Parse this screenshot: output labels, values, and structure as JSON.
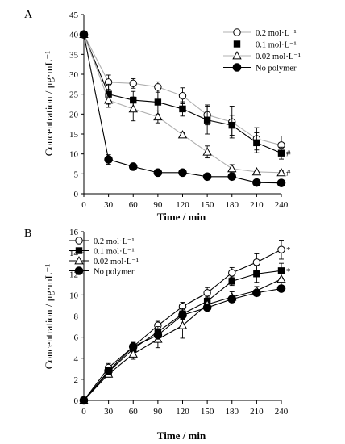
{
  "chart_data": [
    {
      "panel": "A",
      "type": "line",
      "xlabel": "Time / min",
      "ylabel": "Concentration / μg·mL⁻¹",
      "x": [
        0,
        30,
        60,
        90,
        120,
        150,
        180,
        210,
        240
      ],
      "xlim": [
        0,
        240
      ],
      "ylim": [
        0,
        45
      ],
      "yticks": [
        0,
        5,
        10,
        15,
        20,
        25,
        30,
        35,
        40,
        45
      ],
      "legend_position": "top-right",
      "series": [
        {
          "name": "0.2 mol·L⁻¹",
          "marker": "open-circle",
          "line_color": "#b0b0b0",
          "values": [
            40,
            28,
            27.7,
            26.8,
            24.6,
            19.8,
            18,
            13.8,
            12.2
          ],
          "errors": [
            0,
            1.8,
            1.2,
            1.3,
            2,
            2.5,
            4,
            2.8,
            2.3
          ],
          "end_mark": ""
        },
        {
          "name": "0.1 mol·L⁻¹",
          "marker": "filled-square",
          "line_color": "#000000",
          "values": [
            40,
            25,
            23.5,
            23,
            21.3,
            18.5,
            17.2,
            12.8,
            10.2
          ],
          "errors": [
            0,
            2.5,
            2.2,
            3,
            1.8,
            3.5,
            2.5,
            2.5,
            1.5
          ],
          "end_mark": "#"
        },
        {
          "name": "0.02 mol·L⁻¹",
          "marker": "open-triangle",
          "line_color": "#b0b0b0",
          "values": [
            40,
            23.5,
            21.3,
            19.3,
            14.8,
            10.5,
            6.3,
            5.5,
            5.3
          ],
          "errors": [
            0,
            1.8,
            3,
            1.5,
            0.5,
            1.5,
            1,
            0.5,
            0.4
          ],
          "end_mark": "#"
        },
        {
          "name": "No polymer",
          "marker": "filled-circle",
          "line_color": "#000000",
          "values": [
            40,
            8.6,
            6.8,
            5.3,
            5.3,
            4.3,
            4.3,
            2.8,
            2.7
          ],
          "errors": [
            0,
            1.2,
            0.8,
            0.6,
            0.5,
            0.4,
            0.4,
            0.3,
            0.3
          ],
          "end_mark": ""
        }
      ]
    },
    {
      "panel": "B",
      "type": "line",
      "xlabel": "Time / min",
      "ylabel": "Concentration / μg·mL⁻¹",
      "x": [
        0,
        30,
        60,
        90,
        120,
        150,
        180,
        210,
        240
      ],
      "xlim": [
        0,
        240
      ],
      "ylim": [
        0,
        16
      ],
      "yticks": [
        0,
        2,
        4,
        6,
        8,
        10,
        12,
        14,
        16
      ],
      "legend_position": "top-left",
      "series": [
        {
          "name": "0.2 mol·L⁻¹",
          "marker": "open-circle",
          "line_color": "#000000",
          "values": [
            0,
            3.1,
            5.1,
            7.1,
            8.9,
            10.2,
            12.1,
            13.1,
            14.3
          ],
          "errors": [
            0,
            0.4,
            0.4,
            0.4,
            0.4,
            0.5,
            0.5,
            0.8,
            0.9
          ],
          "end_mark": "*"
        },
        {
          "name": "0.1 mol·L⁻¹",
          "marker": "filled-square",
          "line_color": "#000000",
          "values": [
            0,
            2.7,
            4.9,
            6.5,
            8.2,
            9.4,
            11.3,
            12,
            12.3
          ],
          "errors": [
            0,
            0.3,
            0.4,
            0.5,
            0.5,
            0.4,
            0.4,
            0.8,
            0.7
          ],
          "end_mark": "*"
        },
        {
          "name": "0.02 mol·L⁻¹",
          "marker": "open-triangle",
          "line_color": "#000000",
          "values": [
            0,
            2.5,
            4.4,
            5.8,
            7.1,
            9.1,
            9.8,
            10.4,
            11.5
          ],
          "errors": [
            0,
            0.3,
            0.5,
            0.8,
            1.2,
            0.5,
            0.5,
            0.4,
            0.6
          ],
          "end_mark": ""
        },
        {
          "name": "No polymer",
          "marker": "filled-circle",
          "line_color": "#000000",
          "values": [
            0,
            2.8,
            5.1,
            6.2,
            8.1,
            8.8,
            9.6,
            10.2,
            10.6
          ],
          "errors": [
            0,
            0.3,
            0.4,
            0.4,
            0.4,
            0.3,
            0.3,
            0.3,
            0.3
          ],
          "end_mark": ""
        }
      ]
    }
  ]
}
